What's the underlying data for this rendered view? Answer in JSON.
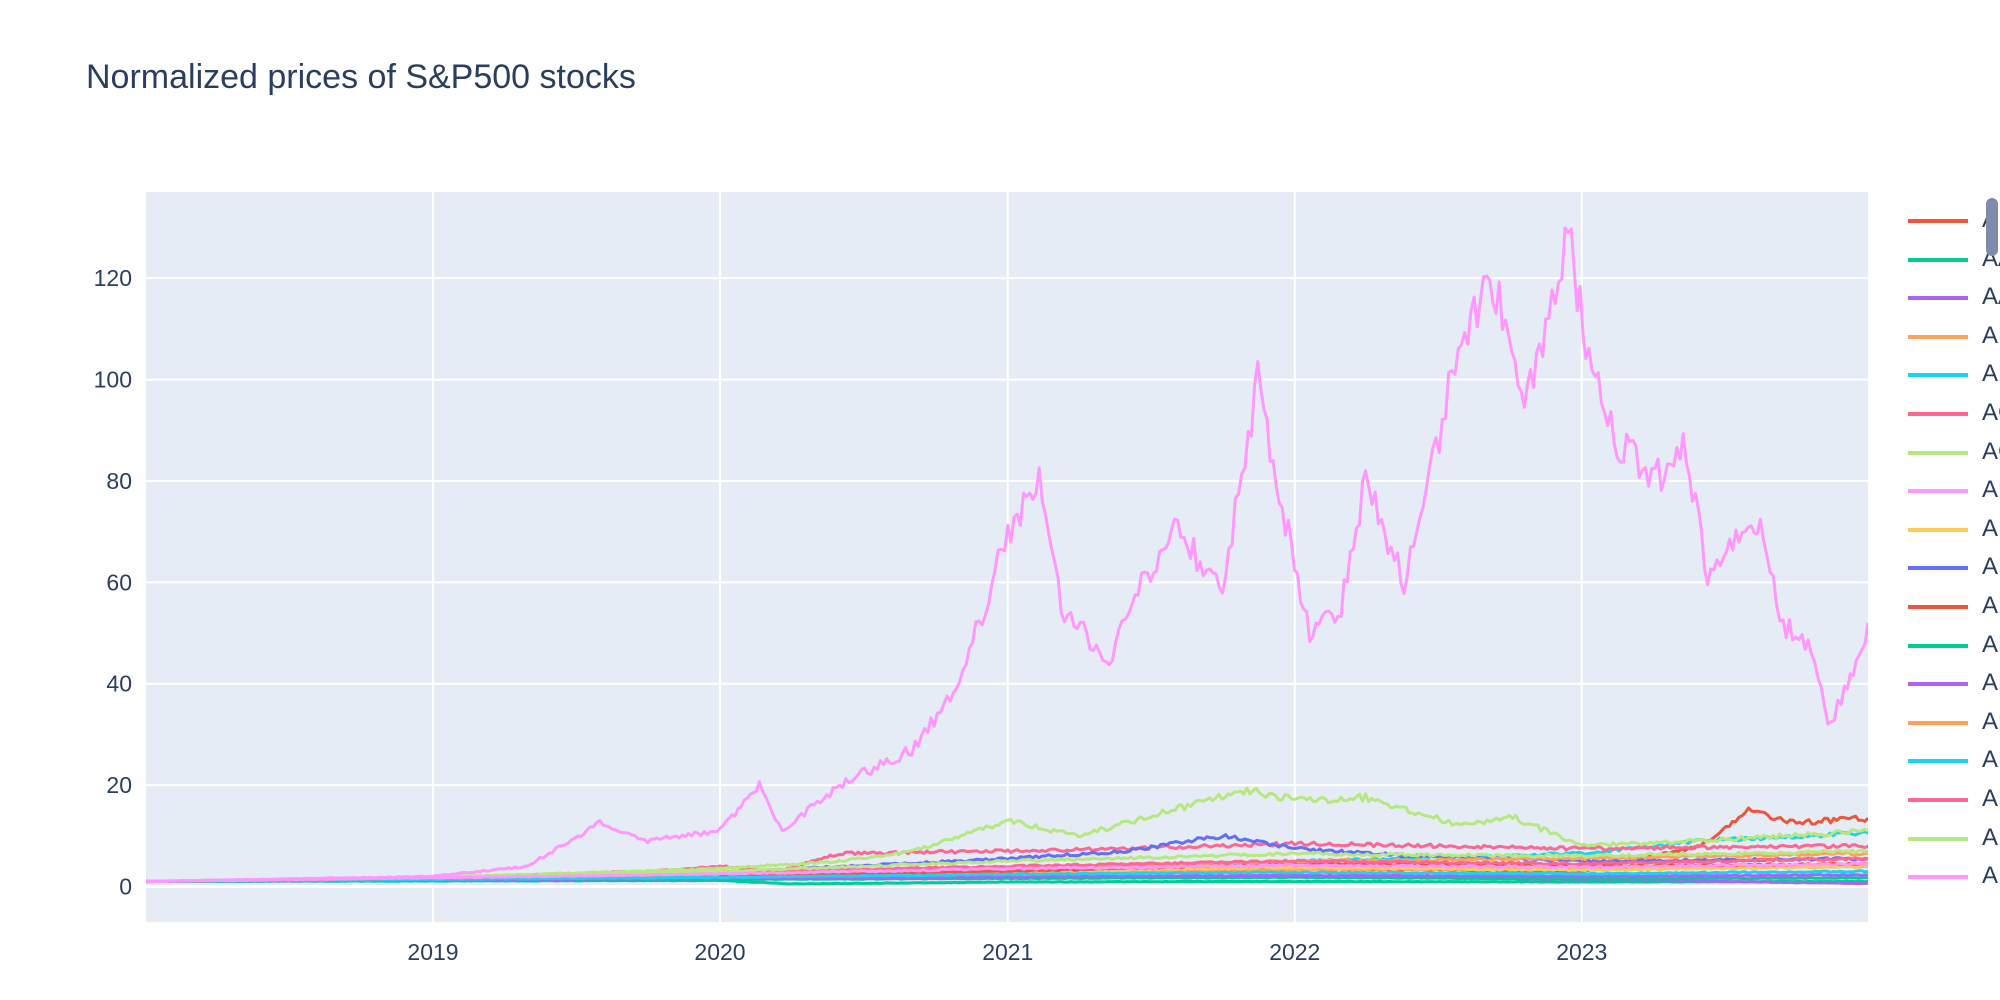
{
  "chart_data": {
    "type": "line",
    "title": "Normalized prices of S&P500 stocks",
    "xlabel": "",
    "ylabel": "",
    "x_start": "2018-01-01",
    "x_end": "2023-12-31",
    "xlim": [
      "2018-01-01",
      "2023-12-31"
    ],
    "ylim": [
      -7,
      137
    ],
    "x_ticks": [
      "2019",
      "2020",
      "2021",
      "2022",
      "2023"
    ],
    "y_ticks": [
      0,
      20,
      40,
      60,
      80,
      100,
      120
    ],
    "grid": true,
    "legend_position": "right",
    "series": [
      {
        "name": "A",
        "color": "#EF553B",
        "points": [
          [
            "2018-01-01",
            1.0
          ],
          [
            "2019-01-01",
            1.6
          ],
          [
            "2020-01-01",
            2.3
          ],
          [
            "2021-01-01",
            3.2
          ],
          [
            "2022-01-01",
            3.6
          ],
          [
            "2023-01-01",
            3.0
          ],
          [
            "2023-06-01",
            8.0
          ],
          [
            "2023-08-01",
            15.0
          ],
          [
            "2023-10-01",
            12.5
          ],
          [
            "2023-12-31",
            13.5
          ]
        ]
      },
      {
        "name": "AAL",
        "color": "#00CC96",
        "points": [
          [
            "2018-01-01",
            1.0
          ],
          [
            "2019-01-01",
            1.1
          ],
          [
            "2020-01-01",
            1.2
          ],
          [
            "2020-04-01",
            0.5
          ],
          [
            "2021-01-01",
            0.9
          ],
          [
            "2022-01-01",
            1.0
          ],
          [
            "2023-01-01",
            0.9
          ],
          [
            "2023-12-31",
            1.0
          ]
        ]
      },
      {
        "name": "AAP",
        "color": "#AB63FA",
        "points": [
          [
            "2018-01-01",
            1.0
          ],
          [
            "2019-01-01",
            1.4
          ],
          [
            "2020-01-01",
            1.5
          ],
          [
            "2021-01-01",
            1.7
          ],
          [
            "2022-01-01",
            2.0
          ],
          [
            "2023-01-01",
            1.4
          ],
          [
            "2023-12-31",
            0.6
          ]
        ]
      },
      {
        "name": "ABBV",
        "color": "#FFA15A",
        "points": [
          [
            "2018-01-01",
            1.0
          ],
          [
            "2019-01-01",
            1.5
          ],
          [
            "2020-01-01",
            2.0
          ],
          [
            "2021-01-01",
            2.6
          ],
          [
            "2022-01-01",
            3.3
          ],
          [
            "2023-01-01",
            3.7
          ],
          [
            "2023-12-31",
            3.9
          ]
        ]
      },
      {
        "name": "ABC",
        "color": "#19D3F3",
        "points": [
          [
            "2018-01-01",
            1.0
          ],
          [
            "2019-01-01",
            1.5
          ],
          [
            "2020-01-01",
            2.5
          ],
          [
            "2021-01-01",
            3.5
          ],
          [
            "2022-01-01",
            5.0
          ],
          [
            "2023-01-01",
            6.5
          ],
          [
            "2023-06-01",
            9.0
          ],
          [
            "2023-12-31",
            10.5
          ]
        ]
      },
      {
        "name": "ACN",
        "color": "#FF6692",
        "points": [
          [
            "2018-01-01",
            1.0
          ],
          [
            "2019-01-01",
            1.8
          ],
          [
            "2019-10-01",
            3.0
          ],
          [
            "2020-01-01",
            4.0
          ],
          [
            "2020-03-15",
            3.0
          ],
          [
            "2020-06-01",
            6.5
          ],
          [
            "2021-01-01",
            7.0
          ],
          [
            "2021-06-01",
            7.5
          ],
          [
            "2022-01-01",
            8.5
          ],
          [
            "2023-01-01",
            7.5
          ],
          [
            "2023-12-31",
            8.0
          ]
        ]
      },
      {
        "name": "ACGL",
        "color": "#B6E880",
        "points": [
          [
            "2018-01-01",
            1.0
          ],
          [
            "2019-01-01",
            1.8
          ],
          [
            "2020-01-01",
            3.5
          ],
          [
            "2020-06-01",
            5.0
          ],
          [
            "2020-09-01",
            7.0
          ],
          [
            "2021-01-01",
            13.0
          ],
          [
            "2021-04-01",
            10.0
          ],
          [
            "2021-11-01",
            19.0
          ],
          [
            "2022-01-01",
            17.0
          ],
          [
            "2022-04-01",
            17.5
          ],
          [
            "2022-08-01",
            12.0
          ],
          [
            "2022-10-01",
            14.0
          ],
          [
            "2023-01-01",
            8.0
          ],
          [
            "2023-06-01",
            9.0
          ],
          [
            "2023-12-31",
            11.0
          ]
        ]
      },
      {
        "name": "ADBE",
        "color": "#FF97FF",
        "points": [
          [
            "2018-01-01",
            1.0
          ],
          [
            "2018-07-01",
            1.5
          ],
          [
            "2019-01-01",
            2.0
          ],
          [
            "2019-05-01",
            4.0
          ],
          [
            "2019-08-01",
            12.5
          ],
          [
            "2019-10-01",
            9.0
          ],
          [
            "2020-01-01",
            11.0
          ],
          [
            "2020-02-20",
            20.0
          ],
          [
            "2020-03-20",
            11.0
          ],
          [
            "2020-06-01",
            20.0
          ],
          [
            "2020-09-01",
            27.0
          ],
          [
            "2020-11-01",
            40.0
          ],
          [
            "2021-01-01",
            70.0
          ],
          [
            "2021-02-10",
            81.0
          ],
          [
            "2021-03-10",
            55.0
          ],
          [
            "2021-05-10",
            45.0
          ],
          [
            "2021-06-20",
            60.0
          ],
          [
            "2021-08-01",
            71.0
          ],
          [
            "2021-10-01",
            58.0
          ],
          [
            "2021-11-15",
            100.0
          ],
          [
            "2021-12-20",
            72.0
          ],
          [
            "2022-01-20",
            50.0
          ],
          [
            "2022-03-01",
            55.0
          ],
          [
            "2022-04-01",
            80.0
          ],
          [
            "2022-05-20",
            60.0
          ],
          [
            "2022-08-01",
            108.0
          ],
          [
            "2022-09-10",
            120.0
          ],
          [
            "2022-10-20",
            95.0
          ],
          [
            "2022-11-20",
            112.0
          ],
          [
            "2022-12-15",
            128.0
          ],
          [
            "2023-01-10",
            105.0
          ],
          [
            "2023-02-15",
            87.0
          ],
          [
            "2023-04-20",
            80.0
          ],
          [
            "2023-05-10",
            87.0
          ],
          [
            "2023-06-10",
            62.0
          ],
          [
            "2023-07-20",
            68.0
          ],
          [
            "2023-08-20",
            70.0
          ],
          [
            "2023-09-10",
            52.0
          ],
          [
            "2023-10-20",
            48.0
          ],
          [
            "2023-11-10",
            31.0
          ],
          [
            "2023-12-01",
            38.0
          ],
          [
            "2023-12-31",
            52.0
          ]
        ]
      },
      {
        "name": "ADI",
        "color": "#FECB52",
        "points": [
          [
            "2018-01-01",
            1.0
          ],
          [
            "2019-01-01",
            1.5
          ],
          [
            "2020-01-01",
            2.3
          ],
          [
            "2021-01-01",
            3.0
          ],
          [
            "2022-01-01",
            3.8
          ],
          [
            "2023-01-01",
            3.2
          ],
          [
            "2023-12-31",
            4.0
          ]
        ]
      },
      {
        "name": "ADM",
        "color": "#636EFA",
        "points": [
          [
            "2018-01-01",
            1.0
          ],
          [
            "2019-01-01",
            1.8
          ],
          [
            "2020-01-01",
            2.8
          ],
          [
            "2021-01-01",
            5.5
          ],
          [
            "2021-06-01",
            7.0
          ],
          [
            "2021-10-01",
            10.0
          ],
          [
            "2022-01-01",
            7.5
          ],
          [
            "2022-06-01",
            6.0
          ],
          [
            "2023-01-01",
            5.0
          ],
          [
            "2023-12-31",
            5.5
          ]
        ]
      },
      {
        "name": "ADP",
        "color": "#EF553B",
        "points": [
          [
            "2018-01-01",
            1.0
          ],
          [
            "2019-01-01",
            1.5
          ],
          [
            "2020-01-01",
            2.2
          ],
          [
            "2021-01-01",
            3.0
          ],
          [
            "2022-01-01",
            4.5
          ],
          [
            "2023-01-01",
            4.0
          ],
          [
            "2023-12-31",
            4.5
          ]
        ]
      },
      {
        "name": "ADSK",
        "color": "#00CC96",
        "points": [
          [
            "2018-01-01",
            1.0
          ],
          [
            "2019-01-01",
            1.2
          ],
          [
            "2020-01-01",
            1.4
          ],
          [
            "2021-01-01",
            1.6
          ],
          [
            "2022-01-01",
            1.8
          ],
          [
            "2023-01-01",
            1.5
          ],
          [
            "2023-12-31",
            1.7
          ]
        ]
      },
      {
        "name": "AEE",
        "color": "#AB63FA",
        "points": [
          [
            "2018-01-01",
            1.0
          ],
          [
            "2019-01-01",
            1.3
          ],
          [
            "2020-01-01",
            1.6
          ],
          [
            "2021-01-01",
            1.9
          ],
          [
            "2022-01-01",
            2.2
          ],
          [
            "2023-01-01",
            2.0
          ],
          [
            "2023-12-31",
            2.3
          ]
        ]
      },
      {
        "name": "AEP",
        "color": "#FFA15A",
        "points": [
          [
            "2018-01-01",
            1.0
          ],
          [
            "2019-01-01",
            1.6
          ],
          [
            "2020-01-01",
            2.5
          ],
          [
            "2021-01-01",
            3.8
          ],
          [
            "2022-01-01",
            5.0
          ],
          [
            "2023-01-01",
            5.5
          ],
          [
            "2023-12-31",
            6.5
          ]
        ]
      },
      {
        "name": "AES",
        "color": "#19D3F3",
        "points": [
          [
            "2018-01-01",
            1.0
          ],
          [
            "2019-01-01",
            1.4
          ],
          [
            "2020-01-01",
            1.8
          ],
          [
            "2021-01-01",
            2.4
          ],
          [
            "2022-01-01",
            2.8
          ],
          [
            "2023-01-01",
            2.5
          ],
          [
            "2023-12-31",
            3.0
          ]
        ]
      },
      {
        "name": "AFL",
        "color": "#FF6692",
        "points": [
          [
            "2018-01-01",
            1.0
          ],
          [
            "2019-01-01",
            1.7
          ],
          [
            "2020-01-01",
            2.8
          ],
          [
            "2021-01-01",
            4.0
          ],
          [
            "2022-01-01",
            5.0
          ],
          [
            "2023-01-01",
            4.5
          ],
          [
            "2023-12-31",
            5.5
          ]
        ]
      },
      {
        "name": "AIG",
        "color": "#B6E880",
        "points": [
          [
            "2018-01-01",
            1.0
          ],
          [
            "2019-01-01",
            1.9
          ],
          [
            "2020-01-01",
            3.0
          ],
          [
            "2021-01-01",
            5.0
          ],
          [
            "2022-01-01",
            6.5
          ],
          [
            "2023-01-01",
            6.0
          ],
          [
            "2023-12-31",
            7.0
          ]
        ]
      },
      {
        "name": "AIZ",
        "color": "#FF97FF",
        "points": [
          [
            "2018-01-01",
            1.0
          ],
          [
            "2019-01-01",
            1.7
          ],
          [
            "2020-01-01",
            2.5
          ],
          [
            "2021-01-01",
            3.5
          ],
          [
            "2022-01-01",
            4.2
          ],
          [
            "2023-01-01",
            3.8
          ],
          [
            "2023-12-31",
            4.5
          ]
        ]
      }
    ],
    "legend_visible_labels": [
      "A",
      "AA",
      "AA",
      "AB",
      "AB",
      "AC",
      "AC",
      "AD",
      "AD",
      "AD",
      "AD",
      "AD",
      "AE",
      "AE",
      "AE",
      "AF",
      "AIC",
      "AI"
    ]
  }
}
